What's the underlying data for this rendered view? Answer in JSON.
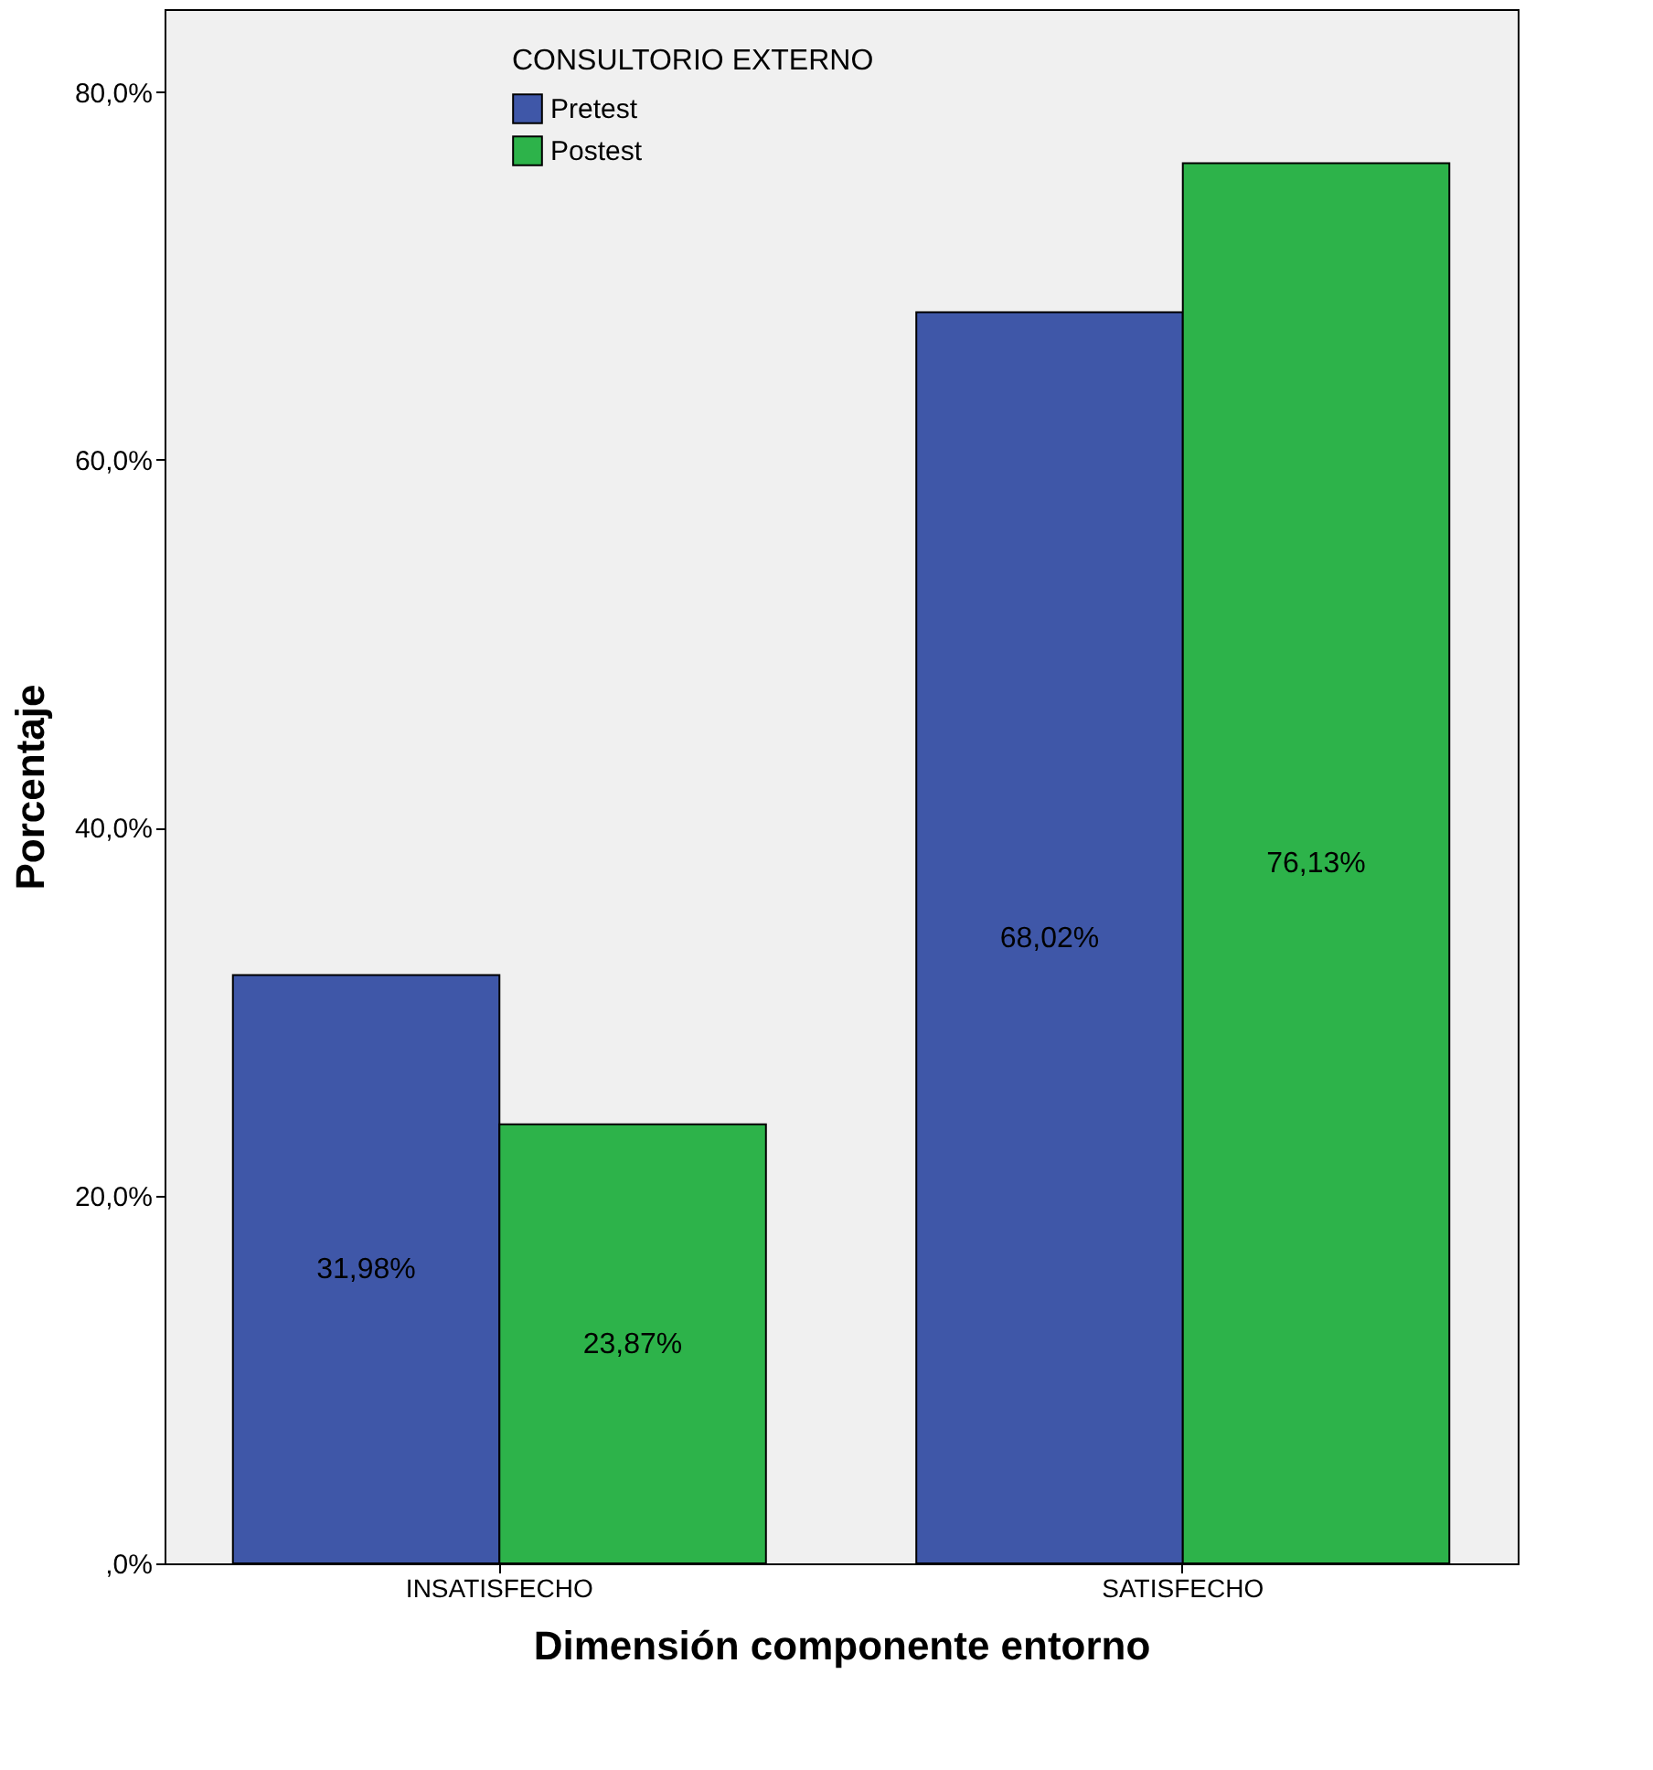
{
  "chart_data": {
    "type": "bar",
    "xlabel": "Dimensión componente entorno",
    "ylabel": "Porcentaje",
    "legend_title": "CONSULTORIO EXTERNO",
    "legend": "top",
    "categories": [
      "INSATISFECHO",
      "SATISFECHO"
    ],
    "series": [
      {
        "name": "Pretest",
        "color": "#3f57a8",
        "values": [
          31.98,
          68.02
        ],
        "value_labels": [
          "31,98%",
          "68,02%"
        ]
      },
      {
        "name": "Postest",
        "color": "#2db34a",
        "values": [
          23.87,
          76.13
        ],
        "value_labels": [
          "23,87%",
          "76,13%"
        ]
      }
    ],
    "ylim": [
      0,
      84.5
    ],
    "yticks": [
      {
        "value": 0,
        "label": ",0%"
      },
      {
        "value": 20,
        "label": "20,0%"
      },
      {
        "value": 40,
        "label": "40,0%"
      },
      {
        "value": 60,
        "label": "60,0%"
      },
      {
        "value": 80,
        "label": "80,0%"
      }
    ],
    "grid": false
  }
}
